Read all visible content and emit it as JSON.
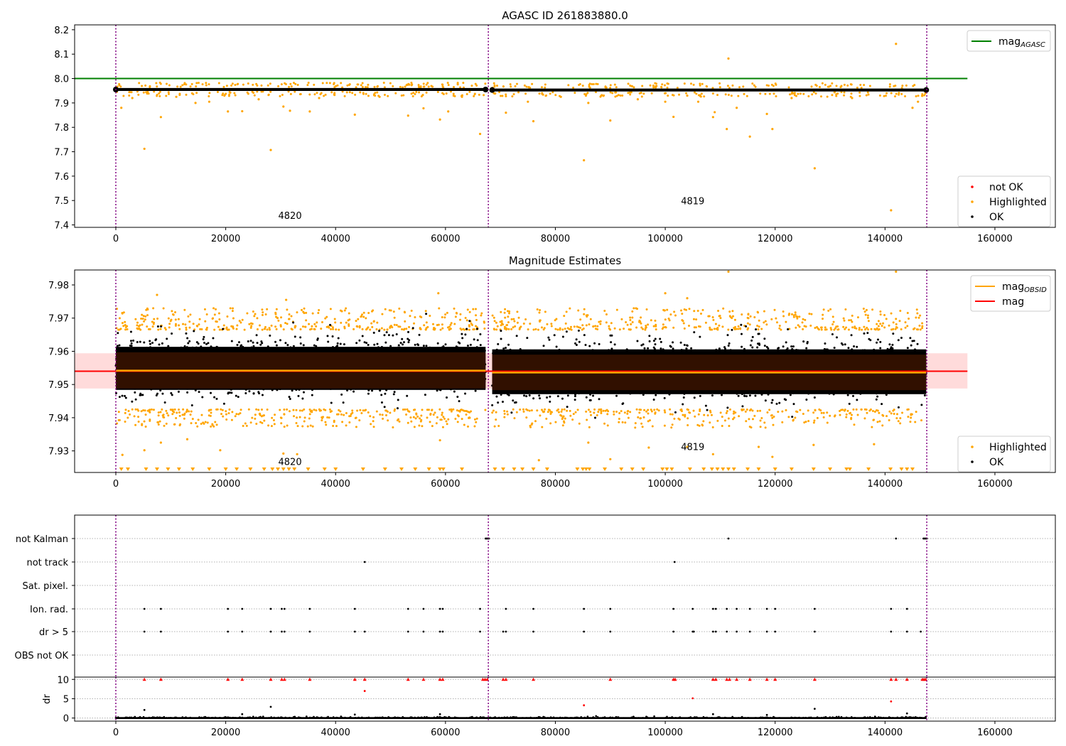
{
  "chart_data": [
    {
      "type": "scatter",
      "title": "AGASC ID 261883880.0",
      "xlim": [
        -7500,
        171000
      ],
      "ylim": [
        7.39,
        8.22
      ],
      "xticks": [
        0,
        20000,
        40000,
        60000,
        80000,
        100000,
        120000,
        140000,
        160000
      ],
      "yticks": [
        7.4,
        7.5,
        7.6,
        7.7,
        7.8,
        7.9,
        8.0,
        8.1,
        8.2
      ],
      "ytick_labels": [
        "7.4",
        "7.5",
        "7.6",
        "7.7",
        "7.8",
        "7.9",
        "8.0",
        "8.1",
        "8.2"
      ],
      "vlines": [
        0,
        67800,
        147600
      ],
      "hline": {
        "y": 8.0,
        "x_end": 155000,
        "color": "#008000"
      },
      "ok_bands": [
        {
          "x0": 0,
          "x1": 67300,
          "y": 7.955,
          "spread": 0.006
        },
        {
          "x0": 68500,
          "x1": 147500,
          "y": 7.953,
          "spread": 0.006
        }
      ],
      "highlighted": [
        [
          5200,
          7.712
        ],
        [
          28200,
          7.707
        ],
        [
          66300,
          7.773
        ],
        [
          85200,
          7.665
        ],
        [
          90000,
          7.828
        ],
        [
          76000,
          7.825
        ],
        [
          127200,
          7.632
        ],
        [
          141100,
          7.46
        ],
        [
          111500,
          8.082
        ],
        [
          142000,
          8.142
        ],
        [
          101500,
          7.843
        ],
        [
          108700,
          7.842
        ],
        [
          111200,
          7.793
        ],
        [
          115400,
          7.762
        ],
        [
          119500,
          7.793
        ],
        [
          8200,
          7.842
        ],
        [
          20400,
          7.865
        ],
        [
          23000,
          7.866
        ],
        [
          35300,
          7.865
        ],
        [
          43500,
          7.852
        ],
        [
          53200,
          7.848
        ],
        [
          56000,
          7.878
        ],
        [
          59000,
          7.832
        ],
        [
          1000,
          7.88
        ],
        [
          14500,
          7.9
        ],
        [
          30500,
          7.885
        ],
        [
          31700,
          7.868
        ],
        [
          60500,
          7.865
        ],
        [
          71000,
          7.86
        ],
        [
          75000,
          7.905
        ],
        [
          86000,
          7.9
        ],
        [
          100000,
          7.905
        ],
        [
          106000,
          7.905
        ],
        [
          109000,
          7.862
        ],
        [
          113000,
          7.88
        ],
        [
          118500,
          7.855
        ],
        [
          145000,
          7.88
        ],
        [
          146000,
          7.905
        ],
        [
          3000,
          7.92
        ],
        [
          11000,
          7.925
        ],
        [
          17000,
          7.905
        ],
        [
          26000,
          7.915
        ],
        [
          37000,
          7.92
        ],
        [
          48000,
          7.925
        ],
        [
          63000,
          7.925
        ],
        [
          81000,
          7.925
        ],
        [
          95000,
          7.915
        ],
        [
          104000,
          7.93
        ],
        [
          123000,
          7.92
        ],
        [
          134000,
          7.92
        ]
      ],
      "annotations": [
        {
          "x": 31700,
          "y": 7.425,
          "text": "4820"
        },
        {
          "x": 105000,
          "y": 7.485,
          "text": "4819"
        }
      ],
      "legends": [
        {
          "position": "upper-right",
          "entries": [
            {
              "label": "mag",
              "subscript": "AGASC",
              "color": "#008000",
              "kind": "line"
            }
          ]
        },
        {
          "position": "lower-right",
          "entries": [
            {
              "label": "not OK",
              "color": "#ff0000",
              "kind": "dot"
            },
            {
              "label": "Highlighted",
              "color": "#ffa500",
              "kind": "dot"
            },
            {
              "label": "OK",
              "color": "#000000",
              "kind": "dot"
            }
          ]
        }
      ]
    },
    {
      "type": "scatter",
      "title": "Magnitude Estimates",
      "xlim": [
        -7500,
        171000
      ],
      "ylim": [
        7.9235,
        7.9845
      ],
      "xticks": [
        0,
        20000,
        40000,
        60000,
        80000,
        100000,
        120000,
        140000,
        160000
      ],
      "yticks": [
        7.93,
        7.94,
        7.95,
        7.96,
        7.97,
        7.98
      ],
      "ytick_labels": [
        "7.93",
        "7.94",
        "7.95",
        "7.96",
        "7.97",
        "7.98"
      ],
      "vlines": [
        0,
        67800,
        147600
      ],
      "mag_line": {
        "y": 7.954,
        "color": "#ff0000",
        "band": [
          7.9488,
          7.9594
        ],
        "band_color": "#ffcccc"
      },
      "obsid_segments": [
        {
          "x0": 0,
          "x1": 67300,
          "y": 7.9542,
          "band": [
            7.9488,
            7.9597
          ]
        },
        {
          "x0": 68500,
          "x1": 147500,
          "y": 7.9536,
          "band": [
            7.9483,
            7.959
          ]
        }
      ],
      "ok_segments": [
        {
          "x0": 0,
          "x1": 67300,
          "center": 7.9555,
          "spread": 0.0075
        },
        {
          "x0": 68500,
          "x1": 147500,
          "center": 7.9545,
          "spread": 0.0078
        }
      ],
      "highlighted_spread": {
        "upper": [
          7.9665,
          7.973
        ],
        "lower": [
          7.937,
          7.9425
        ]
      },
      "highlighted_extra": [
        [
          111500,
          7.984
        ],
        [
          142000,
          7.984
        ],
        [
          58700,
          7.9775
        ],
        [
          100000,
          7.9775
        ],
        [
          104000,
          7.976
        ],
        [
          7500,
          7.977
        ],
        [
          31000,
          7.9755
        ],
        [
          1200,
          7.9288
        ],
        [
          5200,
          7.9302
        ],
        [
          8200,
          7.9325
        ],
        [
          13000,
          7.9335
        ],
        [
          19000,
          7.9302
        ],
        [
          30500,
          7.9292
        ],
        [
          33000,
          7.929
        ],
        [
          59000,
          7.9332
        ],
        [
          77000,
          7.9272
        ],
        [
          86000,
          7.9325
        ],
        [
          90000,
          7.9275
        ],
        [
          97000,
          7.931
        ],
        [
          104000,
          7.9312
        ],
        [
          108700,
          7.929
        ],
        [
          117000,
          7.9312
        ],
        [
          119500,
          7.9282
        ],
        [
          127000,
          7.9318
        ],
        [
          138000,
          7.932
        ]
      ],
      "lower_limit_markers": [
        1000,
        2200,
        5500,
        7500,
        9500,
        11500,
        14000,
        17000,
        20000,
        22000,
        24500,
        27000,
        28500,
        29500,
        30500,
        31500,
        32500,
        35000,
        38000,
        40000,
        45000,
        49000,
        52000,
        54500,
        57000,
        59000,
        59600,
        63000,
        69000,
        70500,
        72500,
        74000,
        76000,
        78500,
        84000,
        85000,
        85600,
        86200,
        89000,
        92000,
        94000,
        96000,
        99500,
        100300,
        101200,
        104500,
        107000,
        108500,
        109500,
        110500,
        111500,
        112500,
        115000,
        117000,
        120000,
        123000,
        127000,
        130000,
        133000,
        133600,
        137000,
        141000,
        143000,
        144000,
        145000
      ],
      "annotations": [
        {
          "x": 31700,
          "y": 7.9257,
          "text": "4820"
        },
        {
          "x": 105000,
          "y": 7.9302,
          "text": "4819"
        }
      ],
      "legends": [
        {
          "position": "upper-right",
          "entries": [
            {
              "label": "mag",
              "subscript": "OBSID",
              "color": "#ffa500",
              "kind": "line"
            },
            {
              "label": "mag",
              "color": "#ff0000",
              "kind": "line"
            }
          ]
        },
        {
          "position": "lower-right",
          "entries": [
            {
              "label": "Highlighted",
              "color": "#ffa500",
              "kind": "dot"
            },
            {
              "label": "OK",
              "color": "#000000",
              "kind": "dot"
            }
          ]
        }
      ]
    },
    {
      "type": "scatter",
      "title": "",
      "xlim": [
        -7500,
        171000
      ],
      "xticks": [
        0,
        20000,
        40000,
        60000,
        80000,
        100000,
        120000,
        140000,
        160000
      ],
      "vlines": [
        0,
        67800,
        147600
      ],
      "flags": [
        "not Kalman",
        "not track",
        "Sat. pixel.",
        "Ion. rad.",
        "dr > 5",
        "OBS not OK"
      ],
      "flag_points": {
        "not Kalman": [
          67300,
          67500,
          67700,
          67900,
          111500,
          142000,
          147000,
          147200,
          147400,
          147600
        ],
        "not track": [
          45300,
          101700
        ],
        "Sat. pixel.": [],
        "Ion. rad.": [
          5200,
          8200,
          20400,
          23000,
          28200,
          30200,
          30700,
          35300,
          43500,
          53200,
          56000,
          59000,
          59500,
          66300,
          71000,
          76000,
          85200,
          90000,
          101500,
          105000,
          108700,
          109200,
          111200,
          113000,
          115400,
          118500,
          120000,
          127200,
          141100,
          144000
        ],
        "dr > 5": [
          5200,
          8200,
          20400,
          23000,
          28200,
          30200,
          30700,
          35300,
          43500,
          45300,
          53200,
          56000,
          59000,
          59500,
          66300,
          70500,
          71000,
          76000,
          85200,
          90000,
          101500,
          105000,
          105200,
          108700,
          109200,
          111200,
          113000,
          115400,
          118500,
          120000,
          127200,
          141100,
          144000,
          146500
        ],
        "OBS not OK": []
      },
      "dr": {
        "ylabel": "dr",
        "ylim": [
          -0.8,
          10.6
        ],
        "yticks": [
          0,
          5,
          10
        ],
        "ytick_labels": [
          "0",
          "5",
          "10"
        ],
        "ok_range": [
          0,
          147500
        ],
        "not_ok_capped_x": [
          5200,
          8200,
          20400,
          23000,
          28200,
          30200,
          30700,
          35300,
          43500,
          45300,
          53200,
          56000,
          59000,
          59500,
          66800,
          67200,
          67600,
          70500,
          71000,
          76000,
          90000,
          101500,
          101800,
          108700,
          109200,
          111200,
          111700,
          113000,
          115400,
          118500,
          120000,
          127200,
          141100,
          142000,
          144000,
          146800,
          147100,
          147400
        ],
        "not_ok_extra": [
          [
            45300,
            7.0
          ],
          [
            85200,
            3.3
          ],
          [
            105000,
            5.1
          ],
          [
            141100,
            4.3
          ]
        ],
        "ok_extra": [
          [
            5200,
            2.1
          ],
          [
            28200,
            2.9
          ],
          [
            127200,
            2.4
          ],
          [
            23000,
            1.0
          ],
          [
            43500,
            0.9
          ],
          [
            59000,
            1.0
          ],
          [
            108700,
            1.0
          ],
          [
            118500,
            0.8
          ],
          [
            144000,
            1.2
          ]
        ]
      }
    }
  ]
}
